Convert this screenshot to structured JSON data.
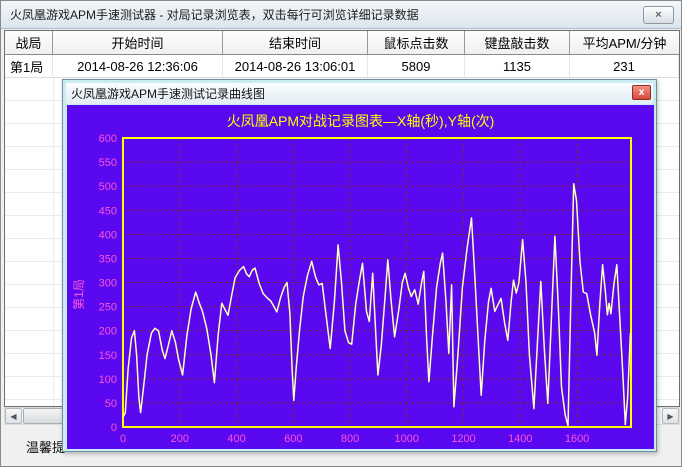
{
  "main_window": {
    "title": "火凤凰游戏APM手速测试器 - 对局记录浏览表，双击每行可浏览详细记录数据",
    "status_text": "温馨提",
    "table": {
      "columns": [
        "战局",
        "开始时间",
        "结束时间",
        "鼠标点击数",
        "键盘敲击数",
        "平均APM/分钟"
      ],
      "rows": [
        [
          "第1局",
          "2014-08-26 12:36:06",
          "2014-08-26 13:06:01",
          "5809",
          "1135",
          "231"
        ]
      ]
    }
  },
  "chart_window": {
    "title": "火凤凰游戏APM手速测试记录曲线图"
  },
  "icons": {
    "close": "×",
    "dialog_close": "x",
    "scroll_left": "◀",
    "scroll_right": "▶"
  },
  "chart_data": {
    "type": "line",
    "title": "火凤凰APM对战记录图表—X轴(秒),Y轴(次)",
    "xlabel": "X轴(秒)",
    "ylabel": "Y轴(次)",
    "series_name": "第1局",
    "xlim": [
      0,
      1790
    ],
    "ylim": [
      0,
      600
    ],
    "x_ticks": [
      0,
      200,
      400,
      600,
      800,
      1000,
      1200,
      1400,
      1600
    ],
    "y_ticks": [
      0,
      50,
      100,
      150,
      200,
      250,
      300,
      350,
      400,
      450,
      500,
      550,
      600
    ],
    "grid": true,
    "colors": {
      "plot_bg": "#5A08F0",
      "grid": "#7E2830",
      "axis": "#FFFF00",
      "series": "#FFFFC0",
      "tick_text": "#FF55DD",
      "title_text": "#FFFF00"
    },
    "points": [
      [
        0,
        20
      ],
      [
        8,
        30
      ],
      [
        18,
        120
      ],
      [
        30,
        185
      ],
      [
        40,
        200
      ],
      [
        48,
        150
      ],
      [
        56,
        60
      ],
      [
        62,
        30
      ],
      [
        72,
        80
      ],
      [
        85,
        150
      ],
      [
        100,
        195
      ],
      [
        112,
        205
      ],
      [
        125,
        200
      ],
      [
        138,
        160
      ],
      [
        148,
        142
      ],
      [
        160,
        170
      ],
      [
        172,
        200
      ],
      [
        185,
        175
      ],
      [
        196,
        140
      ],
      [
        210,
        108
      ],
      [
        225,
        190
      ],
      [
        240,
        245
      ],
      [
        256,
        280
      ],
      [
        268,
        258
      ],
      [
        280,
        240
      ],
      [
        295,
        205
      ],
      [
        310,
        150
      ],
      [
        322,
        92
      ],
      [
        335,
        190
      ],
      [
        348,
        257
      ],
      [
        360,
        243
      ],
      [
        370,
        232
      ],
      [
        382,
        270
      ],
      [
        395,
        310
      ],
      [
        410,
        325
      ],
      [
        425,
        333
      ],
      [
        435,
        318
      ],
      [
        445,
        312
      ],
      [
        455,
        325
      ],
      [
        465,
        330
      ],
      [
        480,
        298
      ],
      [
        494,
        277
      ],
      [
        508,
        268
      ],
      [
        520,
        262
      ],
      [
        532,
        250
      ],
      [
        542,
        239
      ],
      [
        555,
        268
      ],
      [
        568,
        290
      ],
      [
        578,
        300
      ],
      [
        588,
        235
      ],
      [
        596,
        120
      ],
      [
        602,
        55
      ],
      [
        610,
        120
      ],
      [
        622,
        200
      ],
      [
        635,
        270
      ],
      [
        650,
        315
      ],
      [
        665,
        344
      ],
      [
        678,
        312
      ],
      [
        690,
        295
      ],
      [
        702,
        298
      ],
      [
        715,
        235
      ],
      [
        730,
        163
      ],
      [
        745,
        260
      ],
      [
        758,
        378
      ],
      [
        770,
        300
      ],
      [
        782,
        200
      ],
      [
        795,
        175
      ],
      [
        806,
        172
      ],
      [
        820,
        255
      ],
      [
        832,
        300
      ],
      [
        844,
        340
      ],
      [
        858,
        240
      ],
      [
        868,
        219
      ],
      [
        880,
        319
      ],
      [
        890,
        200
      ],
      [
        898,
        108
      ],
      [
        910,
        170
      ],
      [
        922,
        260
      ],
      [
        933,
        347
      ],
      [
        945,
        260
      ],
      [
        957,
        187
      ],
      [
        972,
        245
      ],
      [
        984,
        300
      ],
      [
        994,
        319
      ],
      [
        1006,
        288
      ],
      [
        1016,
        271
      ],
      [
        1028,
        285
      ],
      [
        1040,
        255
      ],
      [
        1052,
        300
      ],
      [
        1060,
        323
      ],
      [
        1070,
        180
      ],
      [
        1078,
        94
      ],
      [
        1090,
        185
      ],
      [
        1105,
        290
      ],
      [
        1118,
        340
      ],
      [
        1126,
        361
      ],
      [
        1138,
        260
      ],
      [
        1148,
        153
      ],
      [
        1158,
        295
      ],
      [
        1166,
        42
      ],
      [
        1180,
        150
      ],
      [
        1196,
        290
      ],
      [
        1212,
        370
      ],
      [
        1228,
        434
      ],
      [
        1240,
        310
      ],
      [
        1250,
        200
      ],
      [
        1262,
        66
      ],
      [
        1275,
        180
      ],
      [
        1288,
        260
      ],
      [
        1297,
        288
      ],
      [
        1310,
        240
      ],
      [
        1322,
        255
      ],
      [
        1332,
        267
      ],
      [
        1345,
        215
      ],
      [
        1356,
        180
      ],
      [
        1368,
        262
      ],
      [
        1376,
        305
      ],
      [
        1386,
        278
      ],
      [
        1395,
        300
      ],
      [
        1408,
        389
      ],
      [
        1420,
        300
      ],
      [
        1432,
        150
      ],
      [
        1448,
        38
      ],
      [
        1460,
        170
      ],
      [
        1472,
        302
      ],
      [
        1485,
        160
      ],
      [
        1497,
        49
      ],
      [
        1510,
        230
      ],
      [
        1522,
        396
      ],
      [
        1534,
        250
      ],
      [
        1545,
        83
      ],
      [
        1558,
        25
      ],
      [
        1568,
        2
      ],
      [
        1578,
        260
      ],
      [
        1588,
        505
      ],
      [
        1598,
        470
      ],
      [
        1610,
        345
      ],
      [
        1622,
        280
      ],
      [
        1634,
        277
      ],
      [
        1648,
        232
      ],
      [
        1662,
        195
      ],
      [
        1670,
        149
      ],
      [
        1680,
        255
      ],
      [
        1690,
        337
      ],
      [
        1700,
        278
      ],
      [
        1707,
        233
      ],
      [
        1713,
        257
      ],
      [
        1719,
        235
      ],
      [
        1730,
        298
      ],
      [
        1740,
        337
      ],
      [
        1752,
        210
      ],
      [
        1762,
        100
      ],
      [
        1770,
        5
      ],
      [
        1778,
        60
      ],
      [
        1788,
        195
      ]
    ]
  }
}
